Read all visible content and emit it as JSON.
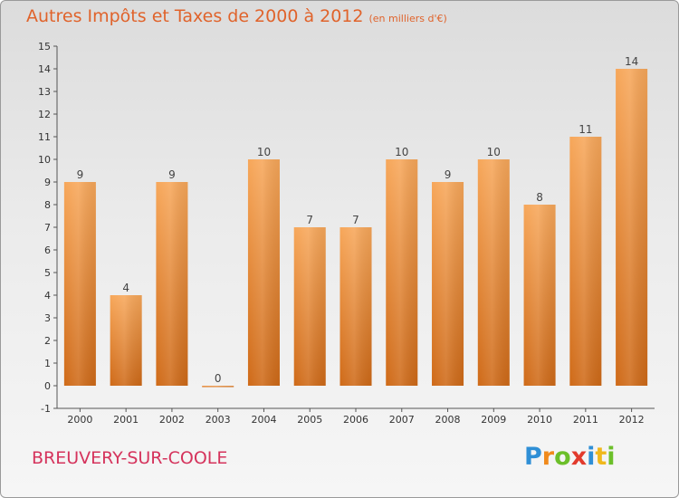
{
  "chart_data": {
    "type": "bar",
    "title": "Autres Impôts et Taxes de 2000 à 2012",
    "subtitle": "(en milliers d'€)",
    "categories": [
      "2000",
      "2001",
      "2002",
      "2003",
      "2004",
      "2005",
      "2006",
      "2007",
      "2008",
      "2009",
      "2010",
      "2011",
      "2012"
    ],
    "values": [
      9,
      4,
      9,
      0,
      10,
      7,
      7,
      10,
      9,
      10,
      8,
      11,
      14
    ],
    "data_labels": [
      "9",
      "4",
      "9",
      "0",
      "10",
      "7",
      "7",
      "10",
      "9",
      "10",
      "8",
      "11",
      "14"
    ],
    "y_ticks": [
      "-1",
      "0",
      "1",
      "2",
      "3",
      "4",
      "5",
      "6",
      "7",
      "8",
      "9",
      "10",
      "11",
      "12",
      "13",
      "14",
      "15"
    ],
    "ylim": [
      -1,
      15
    ],
    "xlabel": "",
    "ylabel": "",
    "grid": false,
    "legend": "none",
    "bar_color": "#f0923c"
  },
  "footer": {
    "town": "BREUVERY-SUR-COOLE",
    "logo_letters": [
      {
        "ch": "P",
        "color": "#2f8fd6"
      },
      {
        "ch": "r",
        "color": "#f08a1c"
      },
      {
        "ch": "o",
        "color": "#6cbf2a"
      },
      {
        "ch": "x",
        "color": "#e23a2c"
      },
      {
        "ch": "i",
        "color": "#2f8fd6"
      },
      {
        "ch": "t",
        "color": "#f0b81c"
      },
      {
        "ch": "i",
        "color": "#6cbf2a"
      }
    ]
  }
}
